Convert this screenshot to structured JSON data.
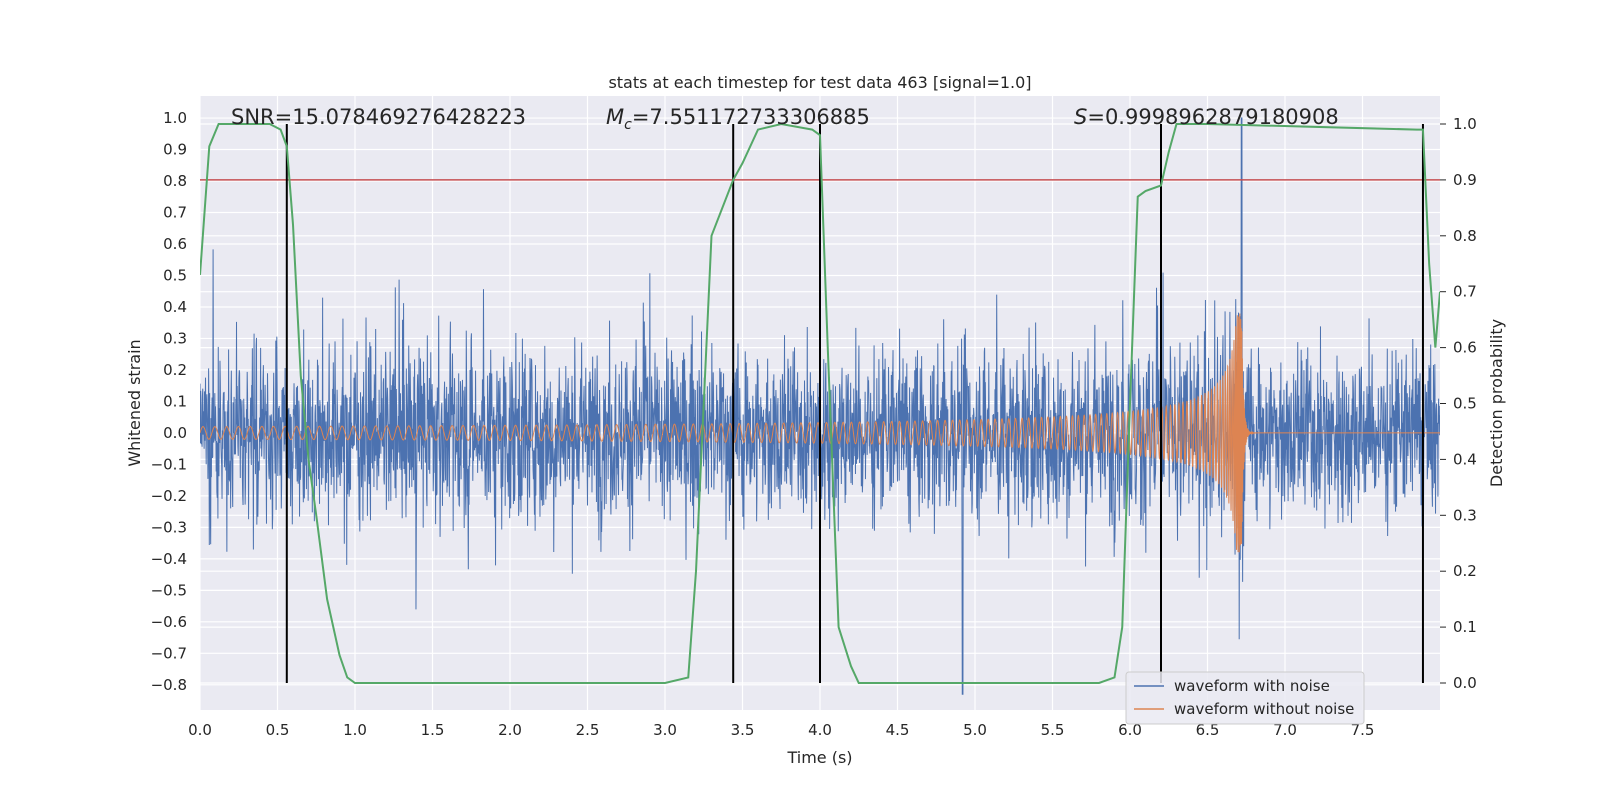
{
  "chart_data": {
    "type": "line",
    "title": "stats at each timestep for test data 463 [signal=1.0]",
    "xlabel": "Time (s)",
    "ylabel_left": "Whitened strain",
    "ylabel_right": "Detection probability",
    "xlim": [
      0.0,
      8.0
    ],
    "ylim_left": [
      -0.88,
      1.07
    ],
    "ylim_right": [
      0.0,
      1.0
    ],
    "x_ticks": [
      "0.0",
      "0.5",
      "1.0",
      "1.5",
      "2.0",
      "2.5",
      "3.0",
      "3.5",
      "4.0",
      "4.5",
      "5.0",
      "5.5",
      "6.0",
      "6.5",
      "7.0",
      "7.5"
    ],
    "y_left_ticks": [
      "1.0",
      "0.9",
      "0.8",
      "0.7",
      "0.6",
      "0.5",
      "0.4",
      "0.3",
      "0.2",
      "0.1",
      "0.0",
      "−0.1",
      "−0.2",
      "−0.3",
      "−0.4",
      "−0.5",
      "−0.6",
      "−0.7",
      "−0.8"
    ],
    "y_right_ticks": [
      "1.0",
      "0.9",
      "0.8",
      "0.7",
      "0.6",
      "0.5",
      "0.4",
      "0.3",
      "0.2",
      "0.1",
      "0.0"
    ],
    "grid": true,
    "annotations": {
      "snr": "SNR=15.078469276428223",
      "mc_symbol": "M",
      "mc_sub": "c",
      "mc_value": "=7.551172733306885",
      "s_symbol": "S",
      "s_value": "=0.9998962879180908"
    },
    "legend": {
      "position": "lower-right",
      "entries": [
        "waveform with noise",
        "waveform without noise"
      ]
    },
    "colors": {
      "noise": "#4c72b0",
      "clean": "#dd8452",
      "probability": "#55a868",
      "threshold": "#c44e52",
      "boundaries": "#000000",
      "background": "#eaeaf2",
      "grid": "#ffffff"
    },
    "threshold": 0.9,
    "detection_boundaries": [
      0.56,
      3.44,
      4.0,
      6.2,
      7.89
    ],
    "merger_time": 6.72,
    "noise_series": {
      "name": "waveform with noise",
      "typical_range": [
        -0.3,
        0.4
      ],
      "peak_max": 1.0,
      "peak_min": -0.83
    },
    "clean_series": {
      "name": "waveform without noise",
      "amplitude_start": 0.02,
      "amplitude_peak": 0.38,
      "min_at_merger": -0.42
    },
    "probability_series": {
      "x": [
        0.0,
        0.06,
        0.12,
        0.25,
        0.45,
        0.52,
        0.56,
        0.6,
        0.65,
        0.7,
        0.75,
        0.82,
        0.9,
        0.95,
        1.0,
        3.0,
        3.15,
        3.2,
        3.3,
        3.44,
        3.5,
        3.6,
        3.75,
        3.95,
        4.0,
        4.05,
        4.12,
        4.2,
        4.25,
        5.8,
        5.9,
        5.95,
        6.0,
        6.05,
        6.1,
        6.2,
        6.25,
        6.3,
        6.33,
        6.5,
        7.85,
        7.89,
        7.93,
        7.97,
        8.0
      ],
      "y": [
        0.73,
        0.96,
        1.0,
        1.0,
        1.0,
        0.99,
        0.96,
        0.82,
        0.55,
        0.4,
        0.3,
        0.15,
        0.05,
        0.01,
        0.0,
        0.0,
        0.01,
        0.2,
        0.8,
        0.9,
        0.93,
        0.99,
        1.0,
        0.99,
        0.98,
        0.6,
        0.1,
        0.03,
        0.0,
        0.0,
        0.01,
        0.1,
        0.5,
        0.87,
        0.88,
        0.89,
        0.95,
        1.0,
        1.0,
        1.0,
        0.99,
        0.99,
        0.75,
        0.6,
        0.7
      ]
    }
  }
}
